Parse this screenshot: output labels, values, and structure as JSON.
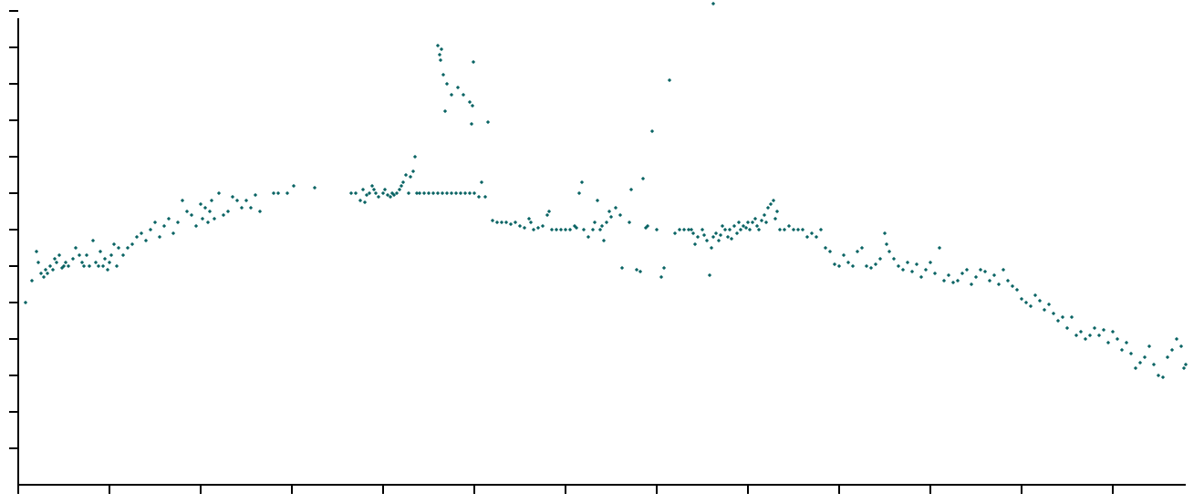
{
  "chart_data": {
    "type": "scatter",
    "title": "",
    "xlabel": "",
    "ylabel": "",
    "x_ticks_count": 13,
    "y_ticks_count": 13,
    "xlim": [
      0,
      12.8
    ],
    "ylim": [
      0,
      13
    ],
    "grid": false,
    "marker_color": "#0a6464",
    "series": [
      {
        "points": [
          [
            0.08,
            5.0
          ],
          [
            0.15,
            5.6
          ],
          [
            0.2,
            6.4
          ],
          [
            0.22,
            6.1
          ],
          [
            0.25,
            5.8
          ],
          [
            0.28,
            5.7
          ],
          [
            0.3,
            5.9
          ],
          [
            0.32,
            5.8
          ],
          [
            0.35,
            6.0
          ],
          [
            0.38,
            5.9
          ],
          [
            0.4,
            6.2
          ],
          [
            0.42,
            6.1
          ],
          [
            0.45,
            6.3
          ],
          [
            0.48,
            5.95
          ],
          [
            0.5,
            6.0
          ],
          [
            0.52,
            6.1
          ],
          [
            0.55,
            6.0
          ],
          [
            0.6,
            6.2
          ],
          [
            0.63,
            6.5
          ],
          [
            0.67,
            6.3
          ],
          [
            0.7,
            6.1
          ],
          [
            0.72,
            6.0
          ],
          [
            0.75,
            6.3
          ],
          [
            0.78,
            6.0
          ],
          [
            0.82,
            6.7
          ],
          [
            0.85,
            6.1
          ],
          [
            0.88,
            6.0
          ],
          [
            0.9,
            6.4
          ],
          [
            0.93,
            6.0
          ],
          [
            0.95,
            6.2
          ],
          [
            0.98,
            5.9
          ],
          [
            1.0,
            6.1
          ],
          [
            1.02,
            6.3
          ],
          [
            1.05,
            6.6
          ],
          [
            1.08,
            6.0
          ],
          [
            1.1,
            6.5
          ],
          [
            1.15,
            6.3
          ],
          [
            1.2,
            6.5
          ],
          [
            1.25,
            6.6
          ],
          [
            1.3,
            6.8
          ],
          [
            1.35,
            6.9
          ],
          [
            1.4,
            6.7
          ],
          [
            1.45,
            7.0
          ],
          [
            1.5,
            7.2
          ],
          [
            1.55,
            6.8
          ],
          [
            1.6,
            7.1
          ],
          [
            1.65,
            7.3
          ],
          [
            1.7,
            6.9
          ],
          [
            1.75,
            7.2
          ],
          [
            1.8,
            7.8
          ],
          [
            1.85,
            7.5
          ],
          [
            1.9,
            7.4
          ],
          [
            1.95,
            7.1
          ],
          [
            2.0,
            7.7
          ],
          [
            2.02,
            7.3
          ],
          [
            2.05,
            7.6
          ],
          [
            2.08,
            7.2
          ],
          [
            2.1,
            7.5
          ],
          [
            2.12,
            7.8
          ],
          [
            2.15,
            7.3
          ],
          [
            2.2,
            8.0
          ],
          [
            2.25,
            7.4
          ],
          [
            2.3,
            7.5
          ],
          [
            2.35,
            7.9
          ],
          [
            2.4,
            7.8
          ],
          [
            2.45,
            7.6
          ],
          [
            2.5,
            7.8
          ],
          [
            2.55,
            7.6
          ],
          [
            2.6,
            7.95
          ],
          [
            2.65,
            7.5
          ],
          [
            2.8,
            8.0
          ],
          [
            2.85,
            8.0
          ],
          [
            2.95,
            8.0
          ],
          [
            3.02,
            8.2
          ],
          [
            3.25,
            8.15
          ],
          [
            3.65,
            8.0
          ],
          [
            3.7,
            8.0
          ],
          [
            3.75,
            7.8
          ],
          [
            3.78,
            8.1
          ],
          [
            3.8,
            7.75
          ],
          [
            3.82,
            7.95
          ],
          [
            3.85,
            8.0
          ],
          [
            3.88,
            8.2
          ],
          [
            3.9,
            8.1
          ],
          [
            3.92,
            8.0
          ],
          [
            3.95,
            7.9
          ],
          [
            4.0,
            8.0
          ],
          [
            4.02,
            8.1
          ],
          [
            4.05,
            7.95
          ],
          [
            4.08,
            7.9
          ],
          [
            4.1,
            8.0
          ],
          [
            4.12,
            7.95
          ],
          [
            4.15,
            8.0
          ],
          [
            4.18,
            8.1
          ],
          [
            4.2,
            8.2
          ],
          [
            4.22,
            8.3
          ],
          [
            4.25,
            8.5
          ],
          [
            4.28,
            8.0
          ],
          [
            4.3,
            8.45
          ],
          [
            4.33,
            8.6
          ],
          [
            4.35,
            9.0
          ],
          [
            4.37,
            8.0
          ],
          [
            4.4,
            8.0
          ],
          [
            4.45,
            8.0
          ],
          [
            4.5,
            8.0
          ],
          [
            4.55,
            8.0
          ],
          [
            4.6,
            8.0
          ],
          [
            4.65,
            8.0
          ],
          [
            4.7,
            8.0
          ],
          [
            4.75,
            8.0
          ],
          [
            4.8,
            8.0
          ],
          [
            4.85,
            8.0
          ],
          [
            4.9,
            8.0
          ],
          [
            4.95,
            8.0
          ],
          [
            5.0,
            8.0
          ],
          [
            5.05,
            7.9
          ],
          [
            5.08,
            8.3
          ],
          [
            5.12,
            7.9
          ],
          [
            4.6,
            12.05
          ],
          [
            4.62,
            11.8
          ],
          [
            4.63,
            11.65
          ],
          [
            4.64,
            11.95
          ],
          [
            4.66,
            11.25
          ],
          [
            4.68,
            10.25
          ],
          [
            4.7,
            11.0
          ],
          [
            4.75,
            10.7
          ],
          [
            4.82,
            10.9
          ],
          [
            4.88,
            10.7
          ],
          [
            4.95,
            10.5
          ],
          [
            4.97,
            9.9
          ],
          [
            4.98,
            10.4
          ],
          [
            4.99,
            11.6
          ],
          [
            5.15,
            9.95
          ],
          [
            5.2,
            7.25
          ],
          [
            5.25,
            7.2
          ],
          [
            5.3,
            7.2
          ],
          [
            5.35,
            7.2
          ],
          [
            5.4,
            7.15
          ],
          [
            5.45,
            7.2
          ],
          [
            5.5,
            7.1
          ],
          [
            5.55,
            7.05
          ],
          [
            5.6,
            7.3
          ],
          [
            5.62,
            7.2
          ],
          [
            5.65,
            7.0
          ],
          [
            5.7,
            7.05
          ],
          [
            5.75,
            7.1
          ],
          [
            5.8,
            7.4
          ],
          [
            5.82,
            7.5
          ],
          [
            5.85,
            7.0
          ],
          [
            5.9,
            7.0
          ],
          [
            5.95,
            7.0
          ],
          [
            6.0,
            7.0
          ],
          [
            6.05,
            7.0
          ],
          [
            6.1,
            7.1
          ],
          [
            6.12,
            7.05
          ],
          [
            6.15,
            8.0
          ],
          [
            6.18,
            8.3
          ],
          [
            6.2,
            7.0
          ],
          [
            6.25,
            6.8
          ],
          [
            6.3,
            7.0
          ],
          [
            6.32,
            7.2
          ],
          [
            6.35,
            7.8
          ],
          [
            6.38,
            7.0
          ],
          [
            6.4,
            7.1
          ],
          [
            6.42,
            6.7
          ],
          [
            6.45,
            7.2
          ],
          [
            6.48,
            7.5
          ],
          [
            6.5,
            7.35
          ],
          [
            6.55,
            7.6
          ],
          [
            6.6,
            7.4
          ],
          [
            6.62,
            5.95
          ],
          [
            6.7,
            7.2
          ],
          [
            6.72,
            8.1
          ],
          [
            6.78,
            5.9
          ],
          [
            6.82,
            5.85
          ],
          [
            6.85,
            8.4
          ],
          [
            6.88,
            7.05
          ],
          [
            6.9,
            7.1
          ],
          [
            6.95,
            9.7
          ],
          [
            7.0,
            7.0
          ],
          [
            7.05,
            5.7
          ],
          [
            7.08,
            5.95
          ],
          [
            7.14,
            11.1
          ],
          [
            7.2,
            6.9
          ],
          [
            7.25,
            7.0
          ],
          [
            7.3,
            7.0
          ],
          [
            7.35,
            7.0
          ],
          [
            7.38,
            7.0
          ],
          [
            7.4,
            6.9
          ],
          [
            7.42,
            6.6
          ],
          [
            7.45,
            6.8
          ],
          [
            7.5,
            7.0
          ],
          [
            7.52,
            6.85
          ],
          [
            7.55,
            6.7
          ],
          [
            7.58,
            5.75
          ],
          [
            7.6,
            6.5
          ],
          [
            7.62,
            6.8
          ],
          [
            7.65,
            6.9
          ],
          [
            7.68,
            6.7
          ],
          [
            7.7,
            6.85
          ],
          [
            7.72,
            7.1
          ],
          [
            7.75,
            7.0
          ],
          [
            7.78,
            6.8
          ],
          [
            7.8,
            7.0
          ],
          [
            7.82,
            6.75
          ],
          [
            7.85,
            7.1
          ],
          [
            7.88,
            6.9
          ],
          [
            7.9,
            7.2
          ],
          [
            7.92,
            7.0
          ],
          [
            7.95,
            7.1
          ],
          [
            7.98,
            7.05
          ],
          [
            8.0,
            7.2
          ],
          [
            8.02,
            7.0
          ],
          [
            8.05,
            7.2
          ],
          [
            8.08,
            7.3
          ],
          [
            8.1,
            7.1
          ],
          [
            8.12,
            7.0
          ],
          [
            8.15,
            7.25
          ],
          [
            8.18,
            7.4
          ],
          [
            8.2,
            7.2
          ],
          [
            8.22,
            7.6
          ],
          [
            8.25,
            7.7
          ],
          [
            8.28,
            7.8
          ],
          [
            8.3,
            7.3
          ],
          [
            8.32,
            7.5
          ],
          [
            8.35,
            7.0
          ],
          [
            8.4,
            7.0
          ],
          [
            8.45,
            7.1
          ],
          [
            8.5,
            7.0
          ],
          [
            8.55,
            7.0
          ],
          [
            8.6,
            7.0
          ],
          [
            8.65,
            6.8
          ],
          [
            8.7,
            6.9
          ],
          [
            8.75,
            6.8
          ],
          [
            8.8,
            7.0
          ],
          [
            8.85,
            6.5
          ],
          [
            8.9,
            6.4
          ],
          [
            8.95,
            6.05
          ],
          [
            9.0,
            6.0
          ],
          [
            9.05,
            6.3
          ],
          [
            9.1,
            6.1
          ],
          [
            9.15,
            6.0
          ],
          [
            9.2,
            6.4
          ],
          [
            9.25,
            6.5
          ],
          [
            9.3,
            6.0
          ],
          [
            9.35,
            5.95
          ],
          [
            9.4,
            6.05
          ],
          [
            9.45,
            6.2
          ],
          [
            9.5,
            6.9
          ],
          [
            9.52,
            6.6
          ],
          [
            9.55,
            6.4
          ],
          [
            9.6,
            6.2
          ],
          [
            9.65,
            6.0
          ],
          [
            9.7,
            5.9
          ],
          [
            9.75,
            6.1
          ],
          [
            9.8,
            5.85
          ],
          [
            9.85,
            6.05
          ],
          [
            9.9,
            5.7
          ],
          [
            9.95,
            5.9
          ],
          [
            10.0,
            6.1
          ],
          [
            10.05,
            5.8
          ],
          [
            10.1,
            6.5
          ],
          [
            10.15,
            5.6
          ],
          [
            10.2,
            5.75
          ],
          [
            10.25,
            5.55
          ],
          [
            10.3,
            5.6
          ],
          [
            10.35,
            5.8
          ],
          [
            10.4,
            5.9
          ],
          [
            10.45,
            5.5
          ],
          [
            10.5,
            5.7
          ],
          [
            10.55,
            5.9
          ],
          [
            10.6,
            5.85
          ],
          [
            10.65,
            5.6
          ],
          [
            10.7,
            5.75
          ],
          [
            10.75,
            5.5
          ],
          [
            10.8,
            5.9
          ],
          [
            10.85,
            5.6
          ],
          [
            10.9,
            5.45
          ],
          [
            10.95,
            5.35
          ],
          [
            11.0,
            5.1
          ],
          [
            11.05,
            5.0
          ],
          [
            11.1,
            4.9
          ],
          [
            11.15,
            5.2
          ],
          [
            11.2,
            5.05
          ],
          [
            11.25,
            4.8
          ],
          [
            11.3,
            4.95
          ],
          [
            11.35,
            4.7
          ],
          [
            11.4,
            4.5
          ],
          [
            11.45,
            4.6
          ],
          [
            11.5,
            4.3
          ],
          [
            11.55,
            4.6
          ],
          [
            11.6,
            4.1
          ],
          [
            11.65,
            4.2
          ],
          [
            11.7,
            4.0
          ],
          [
            11.75,
            4.1
          ],
          [
            11.8,
            4.3
          ],
          [
            11.85,
            4.1
          ],
          [
            11.9,
            4.25
          ],
          [
            11.95,
            3.9
          ],
          [
            12.0,
            4.2
          ],
          [
            12.05,
            4.0
          ],
          [
            12.1,
            3.7
          ],
          [
            12.15,
            3.9
          ],
          [
            12.2,
            3.6
          ],
          [
            12.25,
            3.2
          ],
          [
            12.3,
            3.35
          ],
          [
            12.35,
            3.5
          ],
          [
            12.4,
            3.8
          ],
          [
            12.45,
            3.3
          ],
          [
            12.5,
            3.0
          ],
          [
            12.55,
            2.95
          ],
          [
            12.6,
            3.5
          ],
          [
            12.65,
            3.7
          ],
          [
            12.7,
            4.0
          ],
          [
            12.75,
            3.8
          ],
          [
            12.78,
            3.2
          ],
          [
            12.8,
            3.3
          ],
          [
            7.62,
            13.2
          ]
        ]
      }
    ]
  }
}
